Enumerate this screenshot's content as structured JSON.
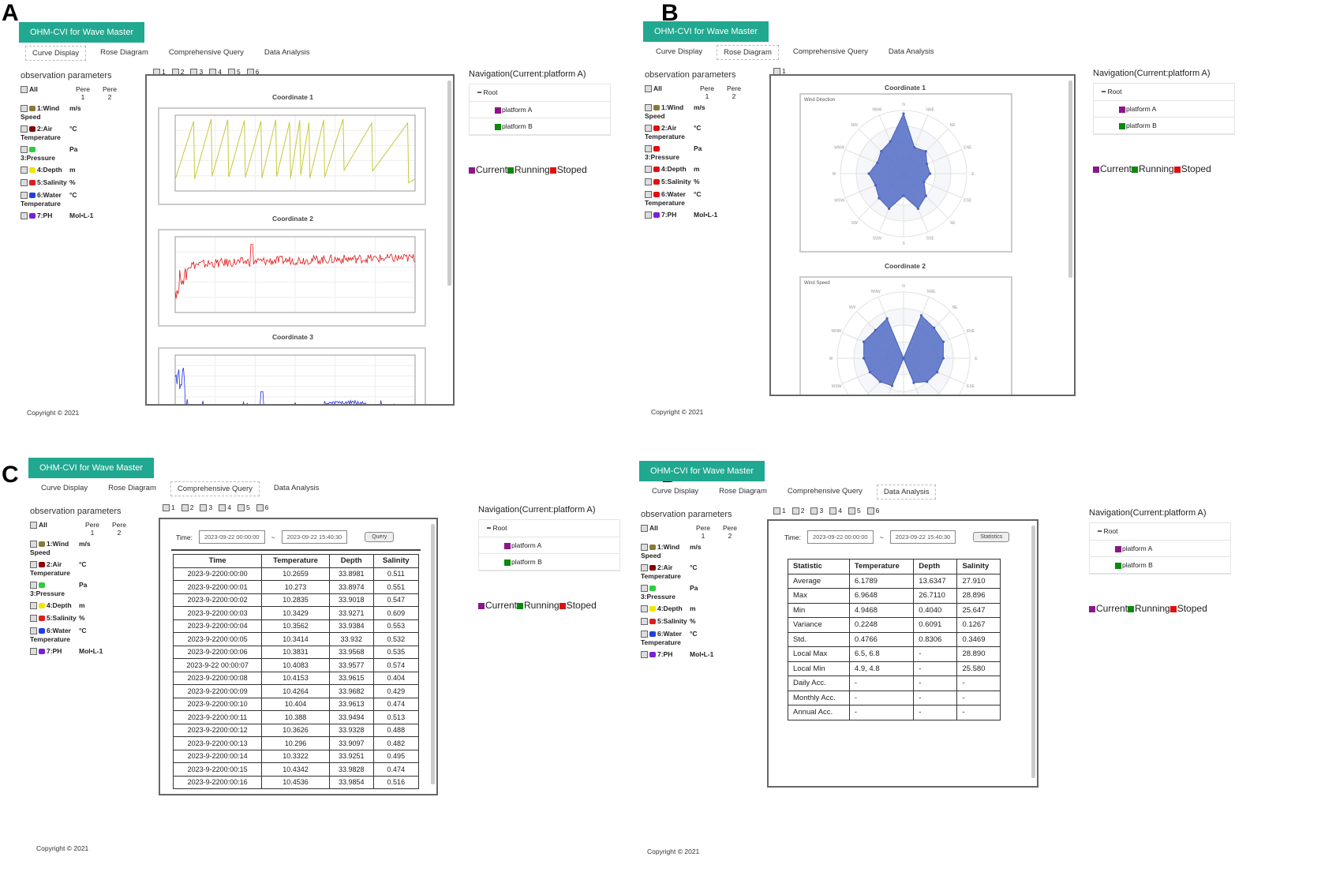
{
  "panels": {
    "a": "A",
    "b": "B",
    "c": "C",
    "d": "D"
  },
  "app": {
    "title": "OHM-CVI for Wave Master",
    "copyright": "Copyright © 2021"
  },
  "tabs": [
    "Curve Display",
    "Rose Diagram",
    "Comprehensive Query",
    "Data Analysis"
  ],
  "obs": {
    "title": "observation parameters",
    "all": "All",
    "pere1": "Pere\n1",
    "pere2": "Pere\n2",
    "params": [
      {
        "name": "1:Wind Speed",
        "unit": "m/s",
        "color": "#8a7a3a"
      },
      {
        "name": "2:Air Temperature",
        "unit": "°C",
        "color": "#8b0000"
      },
      {
        "name": "3:Pressure",
        "unit": "Pa",
        "color": "#2ecc40"
      },
      {
        "name": "4:Depth",
        "unit": "m",
        "color": "#f2e600"
      },
      {
        "name": "5:Salinity",
        "unit": "%",
        "color": "#e11d1d"
      },
      {
        "name": "6:Water Temperature",
        "unit": "°C",
        "color": "#1f3fe0"
      },
      {
        "name": "7:PH",
        "unit": "Mol•L-1",
        "color": "#7a1fd6"
      }
    ]
  },
  "coords": [
    "1",
    "2",
    "3",
    "4",
    "5",
    "6"
  ],
  "coords_b": [
    "1"
  ],
  "nav": {
    "title": "Navigation(Current:platform A)",
    "root": "Root",
    "platform_a": "platform A",
    "platform_b": "platform B"
  },
  "legend": {
    "current": "Current",
    "running": "Running",
    "stoped": "Stoped",
    "current_color": "#8b168b",
    "running_color": "#0a8a0a",
    "stoped_color": "#e01010"
  },
  "curve": {
    "coord1": "Coordinate 1",
    "coord2": "Coordinate 2",
    "coord3": "Coordinate 3"
  },
  "rose": {
    "coord1": "Coordinate 1",
    "coord2": "Coordinate 2",
    "chart1_title": "Wind Direction",
    "chart2_title": "Wind Speed",
    "directions": [
      "N",
      "NNE",
      "NE",
      "ENE",
      "E",
      "ESE",
      "SE",
      "SSE",
      "S",
      "SSW",
      "SW",
      "WSW",
      "W",
      "WNW",
      "NW",
      "NNW"
    ],
    "dir_values": [
      0.95,
      0.45,
      0.5,
      0.4,
      0.42,
      0.35,
      0.5,
      0.6,
      0.35,
      0.6,
      0.55,
      0.48,
      0.55,
      0.45,
      0.5,
      0.55
    ],
    "speed_values": [
      0,
      0.7,
      0.65,
      0.65,
      0.6,
      0.55,
      0.5,
      0.4,
      0,
      0.45,
      0.5,
      0.55,
      0.6,
      0.65,
      0.6,
      0.65
    ]
  },
  "query": {
    "time_label": "Time:",
    "start": "2023-09-22 00:00:00",
    "end": "2023-09-22 15:40:30",
    "tilde": "~",
    "button": "Query",
    "headers": [
      "Time",
      "Temperature",
      "Depth",
      "Salinity"
    ],
    "rows": [
      [
        "2023-9-2200:00:00",
        "10.2659",
        "33.8981",
        "0.511"
      ],
      [
        "2023-9-2200:00:01",
        "10.273",
        "33.8974",
        "0.551"
      ],
      [
        "2023-9-2200:00:02",
        "10.2835",
        "33.9018",
        "0.547"
      ],
      [
        "2023-9-2200:00:03",
        "10.3429",
        "33.9271",
        "0.609"
      ],
      [
        "2023-9-2200:00:04",
        "10.3562",
        "33.9384",
        "0.553"
      ],
      [
        "2023-9-2200:00:05",
        "10.3414",
        "33.932",
        "0.532"
      ],
      [
        "2023-9-2200:00:06",
        "10.3831",
        "33.9568",
        "0.535"
      ],
      [
        "2023-9-22 00:00:07",
        "10.4083",
        "33.9577",
        "0.574"
      ],
      [
        "2023-9-2200:00:08",
        "10.4153",
        "33.9615",
        "0.404"
      ],
      [
        "2023-9-2200:00:09",
        "10.4264",
        "33.9682",
        "0.429"
      ],
      [
        "2023-9-2200:00:10",
        "10.404",
        "33.9613",
        "0.474"
      ],
      [
        "2023-9-2200:00:11",
        "10.388",
        "33.9494",
        "0.513"
      ],
      [
        "2023-9-2200:00:12",
        "10.3626",
        "33.9328",
        "0.488"
      ],
      [
        "2023-9-2200:00:13",
        "10.296",
        "33.9097",
        "0.482"
      ],
      [
        "2023-9-2200:00:14",
        "10.3322",
        "33.9251",
        "0.495"
      ],
      [
        "2023-9-2200:00:15",
        "10.4342",
        "33.9828",
        "0.474"
      ],
      [
        "2023-9-2200:00:16",
        "10.4536",
        "33.9854",
        "0.516"
      ]
    ]
  },
  "analysis": {
    "time_label": "Time:",
    "start": "2023-09-22 00:00:00",
    "end": "2023-09-22 15:40:30",
    "tilde": "~",
    "button": "Statistics",
    "headers": [
      "Statistic",
      "Temperature",
      "Depth",
      "Salinity"
    ],
    "rows": [
      [
        "Average",
        "6.1789",
        "13.6347",
        "27.910"
      ],
      [
        "Max",
        "6.9648",
        "26.7110",
        "28.896"
      ],
      [
        "Min",
        "4.9468",
        "0.4040",
        "25.647"
      ],
      [
        "Variance",
        "0.2248",
        "0.6091",
        "0.1267"
      ],
      [
        "Std.",
        "0.4766",
        "0.8306",
        "0.3469"
      ],
      [
        "Local Max",
        "6.5, 6.8",
        "-",
        "28.890"
      ],
      [
        "Local Min",
        "4.9, 4.8",
        "-",
        "25.580"
      ],
      [
        "Daily Acc.",
        "-",
        "-",
        "-"
      ],
      [
        "Monthly Acc.",
        "-",
        "-",
        "-"
      ],
      [
        "Annual Acc.",
        "-",
        "-",
        "-"
      ]
    ]
  }
}
